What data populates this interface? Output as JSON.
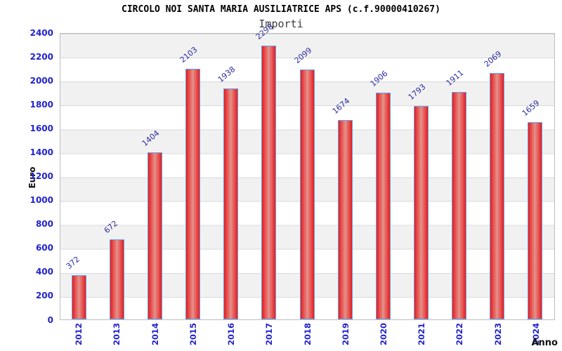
{
  "header": {
    "title": "CIRCOLO NOI SANTA MARIA AUSILIATRICE APS (c.f.90000410267)",
    "subtitle": "Importi"
  },
  "chart_data": {
    "type": "bar",
    "title": "CIRCOLO NOI SANTA MARIA AUSILIATRICE APS (c.f.90000410267)",
    "subtitle": "Importi",
    "xlabel": "Anno",
    "ylabel": "Euro",
    "categories": [
      "2012",
      "2013",
      "2014",
      "2015",
      "2016",
      "2017",
      "2018",
      "2019",
      "2020",
      "2021",
      "2022",
      "2023",
      "2024"
    ],
    "values": [
      372,
      672,
      1404,
      2103,
      1938,
      2298,
      2099,
      1674,
      1906,
      1793,
      1911,
      2069,
      1659
    ],
    "ylim": [
      0,
      2400
    ],
    "ytick_step": 200,
    "yticks": [
      0,
      200,
      400,
      600,
      800,
      1000,
      1200,
      1400,
      1600,
      1800,
      2000,
      2200,
      2400
    ],
    "grid": "horizontal-bands-alternating",
    "legend": "none",
    "colors": {
      "bar_edge": "#ea1c1c",
      "bar_mid": "#e3918c",
      "bar_border": "#5aa2f0",
      "value_label": "#2a2aa0",
      "tick_label": "#2222cc",
      "band_gray": "#f1f1f1",
      "gridline": "#d9d9d9",
      "subtitle_color": "#3c3c3c"
    }
  }
}
